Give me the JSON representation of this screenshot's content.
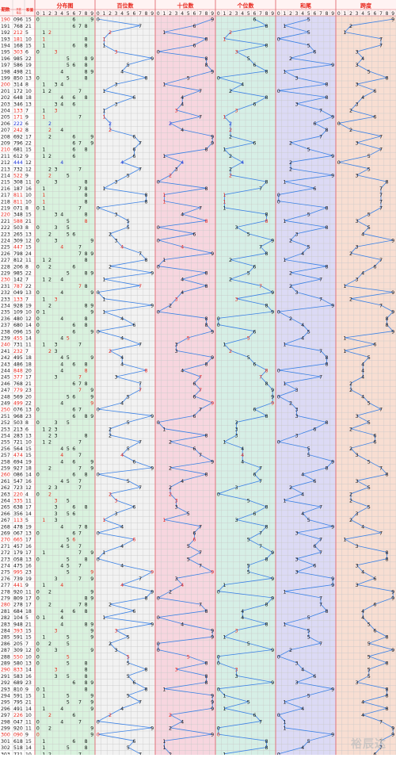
{
  "chart_data": {
    "type": "table",
    "headers": {
      "period": "期数",
      "number": "开奖号码",
      "sum": "和值",
      "sections": [
        "分布图",
        "百位数",
        "十位数",
        "个位数",
        "和尾",
        "跨度"
      ],
      "digits": [
        "0",
        "1",
        "2",
        "3",
        "4",
        "5",
        "6",
        "7",
        "8",
        "9"
      ]
    },
    "watermark": "裕辰达",
    "colors": {
      "line": "#3b82e6",
      "red": "#e8261c",
      "blue": "#1f35d8",
      "dist_bg": "#d9f2de",
      "bai_bg": "#f2f2f2",
      "shi_bg": "#f7d6df",
      "ge_bg": "#d6efe6",
      "hw_bg": "#dcdaf5",
      "kd_bg": "#f8ded2",
      "grid": "#c8c8c8",
      "section_border": "#e26a72"
    },
    "rows": [
      {
        "period": "190",
        "number": "096",
        "sum": "15"
      },
      {
        "period": "191",
        "number": "768",
        "sum": "21"
      },
      {
        "period": "192",
        "number": "212",
        "sum": "5"
      },
      {
        "period": "193",
        "number": "181",
        "sum": "10"
      },
      {
        "period": "194",
        "number": "168",
        "sum": "15"
      },
      {
        "period": "195",
        "number": "303",
        "sum": "6"
      },
      {
        "period": "196",
        "number": "985",
        "sum": "22"
      },
      {
        "period": "197",
        "number": "586",
        "sum": "19"
      },
      {
        "period": "198",
        "number": "498",
        "sum": "21"
      },
      {
        "period": "199",
        "number": "850",
        "sum": "13"
      },
      {
        "period": "200",
        "number": "314",
        "sum": "8"
      },
      {
        "period": "201",
        "number": "172",
        "sum": "10"
      },
      {
        "period": "202",
        "number": "648",
        "sum": "18"
      },
      {
        "period": "203",
        "number": "346",
        "sum": "13"
      },
      {
        "period": "204",
        "number": "133",
        "sum": "7"
      },
      {
        "period": "205",
        "number": "171",
        "sum": "9"
      },
      {
        "period": "206",
        "number": "222",
        "sum": "6"
      },
      {
        "period": "207",
        "number": "242",
        "sum": "8"
      },
      {
        "period": "208",
        "number": "692",
        "sum": "17"
      },
      {
        "period": "209",
        "number": "796",
        "sum": "22"
      },
      {
        "period": "210",
        "number": "681",
        "sum": "15"
      },
      {
        "period": "211",
        "number": "612",
        "sum": "9"
      },
      {
        "period": "212",
        "number": "444",
        "sum": "12"
      },
      {
        "period": "213",
        "number": "732",
        "sum": "12"
      },
      {
        "period": "214",
        "number": "522",
        "sum": "9"
      },
      {
        "period": "215",
        "number": "308",
        "sum": "11"
      },
      {
        "period": "216",
        "number": "187",
        "sum": "16"
      },
      {
        "period": "217",
        "number": "811",
        "sum": "10"
      },
      {
        "period": "218",
        "number": "811",
        "sum": "10"
      },
      {
        "period": "219",
        "number": "071",
        "sum": "8"
      },
      {
        "period": "220",
        "number": "348",
        "sum": "15"
      },
      {
        "period": "221",
        "number": "588",
        "sum": "21"
      },
      {
        "period": "222",
        "number": "503",
        "sum": "8"
      },
      {
        "period": "223",
        "number": "265",
        "sum": "13"
      },
      {
        "period": "224",
        "number": "309",
        "sum": "12"
      },
      {
        "period": "225",
        "number": "447",
        "sum": "15"
      },
      {
        "period": "226",
        "number": "798",
        "sum": "24"
      },
      {
        "period": "227",
        "number": "812",
        "sum": "11"
      },
      {
        "period": "228",
        "number": "206",
        "sum": "8"
      },
      {
        "period": "229",
        "number": "985",
        "sum": "22"
      },
      {
        "period": "230",
        "number": "142",
        "sum": "7"
      },
      {
        "period": "231",
        "number": "787",
        "sum": "22"
      },
      {
        "period": "232",
        "number": "049",
        "sum": "13"
      },
      {
        "period": "233",
        "number": "133",
        "sum": "7"
      },
      {
        "period": "234",
        "number": "928",
        "sum": "19"
      },
      {
        "period": "235",
        "number": "109",
        "sum": "10"
      },
      {
        "period": "236",
        "number": "480",
        "sum": "12"
      },
      {
        "period": "237",
        "number": "680",
        "sum": "14"
      },
      {
        "period": "238",
        "number": "096",
        "sum": "15"
      },
      {
        "period": "239",
        "number": "455",
        "sum": "14"
      },
      {
        "period": "240",
        "number": "731",
        "sum": "11"
      },
      {
        "period": "241",
        "number": "232",
        "sum": "7"
      },
      {
        "period": "242",
        "number": "495",
        "sum": "18"
      },
      {
        "period": "243",
        "number": "486",
        "sum": "18"
      },
      {
        "period": "244",
        "number": "848",
        "sum": "20"
      },
      {
        "period": "245",
        "number": "377",
        "sum": "17"
      },
      {
        "period": "246",
        "number": "768",
        "sum": "21"
      },
      {
        "period": "247",
        "number": "779",
        "sum": "23"
      },
      {
        "period": "248",
        "number": "569",
        "sum": "20"
      },
      {
        "period": "249",
        "number": "499",
        "sum": "22"
      },
      {
        "period": "250",
        "number": "076",
        "sum": "13"
      },
      {
        "period": "251",
        "number": "968",
        "sum": "23"
      },
      {
        "period": "252",
        "number": "503",
        "sum": "8"
      },
      {
        "period": "253",
        "number": "213",
        "sum": "6"
      },
      {
        "period": "254",
        "number": "283",
        "sum": "13"
      },
      {
        "period": "255",
        "number": "721",
        "sum": "10"
      },
      {
        "period": "256",
        "number": "564",
        "sum": "15"
      },
      {
        "period": "257",
        "number": "474",
        "sum": "15"
      },
      {
        "period": "258",
        "number": "694",
        "sum": "19"
      },
      {
        "period": "259",
        "number": "927",
        "sum": "18"
      },
      {
        "period": "260",
        "number": "086",
        "sum": "14"
      },
      {
        "period": "261",
        "number": "547",
        "sum": "16"
      },
      {
        "period": "262",
        "number": "723",
        "sum": "12"
      },
      {
        "period": "263",
        "number": "220",
        "sum": "4"
      },
      {
        "period": "264",
        "number": "335",
        "sum": "11"
      },
      {
        "period": "265",
        "number": "638",
        "sum": "17"
      },
      {
        "period": "266",
        "number": "356",
        "sum": "14"
      },
      {
        "period": "267",
        "number": "113",
        "sum": "5"
      },
      {
        "period": "268",
        "number": "478",
        "sum": "19"
      },
      {
        "period": "269",
        "number": "067",
        "sum": "13"
      },
      {
        "period": "270",
        "number": "665",
        "sum": "17"
      },
      {
        "period": "271",
        "number": "457",
        "sum": "16"
      },
      {
        "period": "272",
        "number": "179",
        "sum": "17"
      },
      {
        "period": "273",
        "number": "058",
        "sum": "13"
      },
      {
        "period": "274",
        "number": "475",
        "sum": "16"
      },
      {
        "period": "275",
        "number": "995",
        "sum": "23"
      },
      {
        "period": "276",
        "number": "739",
        "sum": "19"
      },
      {
        "period": "277",
        "number": "441",
        "sum": "9"
      },
      {
        "period": "278",
        "number": "920",
        "sum": "11"
      },
      {
        "period": "279",
        "number": "809",
        "sum": "17"
      },
      {
        "period": "280",
        "number": "278",
        "sum": "17"
      },
      {
        "period": "281",
        "number": "684",
        "sum": "18"
      },
      {
        "period": "282",
        "number": "104",
        "sum": "5"
      },
      {
        "period": "283",
        "number": "948",
        "sum": "21"
      },
      {
        "period": "284",
        "number": "393",
        "sum": "15"
      },
      {
        "period": "285",
        "number": "591",
        "sum": "15"
      },
      {
        "period": "286",
        "number": "205",
        "sum": "7"
      },
      {
        "period": "287",
        "number": "309",
        "sum": "12"
      },
      {
        "period": "288",
        "number": "550",
        "sum": "10"
      },
      {
        "period": "289",
        "number": "580",
        "sum": "13"
      },
      {
        "period": "290",
        "number": "833",
        "sum": "14"
      },
      {
        "period": "291",
        "number": "583",
        "sum": "16"
      },
      {
        "period": "292",
        "number": "689",
        "sum": "23"
      },
      {
        "period": "293",
        "number": "810",
        "sum": "9"
      },
      {
        "period": "294",
        "number": "591",
        "sum": "15"
      },
      {
        "period": "295",
        "number": "795",
        "sum": "21"
      },
      {
        "period": "296",
        "number": "491",
        "sum": "14"
      },
      {
        "period": "297",
        "number": "226",
        "sum": "10"
      },
      {
        "period": "298",
        "number": "047",
        "sum": "11"
      },
      {
        "period": "299",
        "number": "920",
        "sum": "11"
      },
      {
        "period": "300",
        "number": "090",
        "sum": "9"
      },
      {
        "period": "301",
        "number": "618",
        "sum": "15"
      },
      {
        "period": "302",
        "number": "518",
        "sum": "14"
      },
      {
        "period": "303",
        "number": "721",
        "sum": "10"
      }
    ]
  }
}
